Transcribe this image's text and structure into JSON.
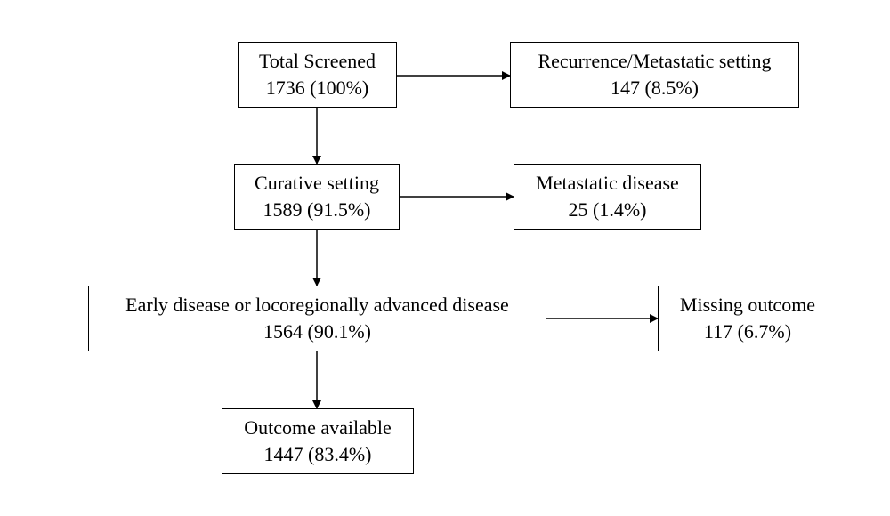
{
  "nodes": {
    "total": {
      "label": "Total Screened",
      "value": "1736 (100%)"
    },
    "recurrence": {
      "label": "Recurrence/Metastatic setting",
      "value": "147 (8.5%)"
    },
    "curative": {
      "label": "Curative setting",
      "value": "1589 (91.5%)"
    },
    "metastatic": {
      "label": "Metastatic disease",
      "value": "25 (1.4%)"
    },
    "early": {
      "label": "Early disease or locoregionally advanced disease",
      "value": "1564 (90.1%)"
    },
    "missing": {
      "label": "Missing outcome",
      "value": "117 (6.7%)"
    },
    "outcome": {
      "label": "Outcome available",
      "value": "1447 (83.4%)"
    }
  },
  "edges": [
    {
      "from": "total",
      "to": "recurrence"
    },
    {
      "from": "total",
      "to": "curative"
    },
    {
      "from": "curative",
      "to": "metastatic"
    },
    {
      "from": "curative",
      "to": "early"
    },
    {
      "from": "early",
      "to": "missing"
    },
    {
      "from": "early",
      "to": "outcome"
    }
  ],
  "colors": {
    "stroke": "#000000",
    "background": "#ffffff"
  }
}
